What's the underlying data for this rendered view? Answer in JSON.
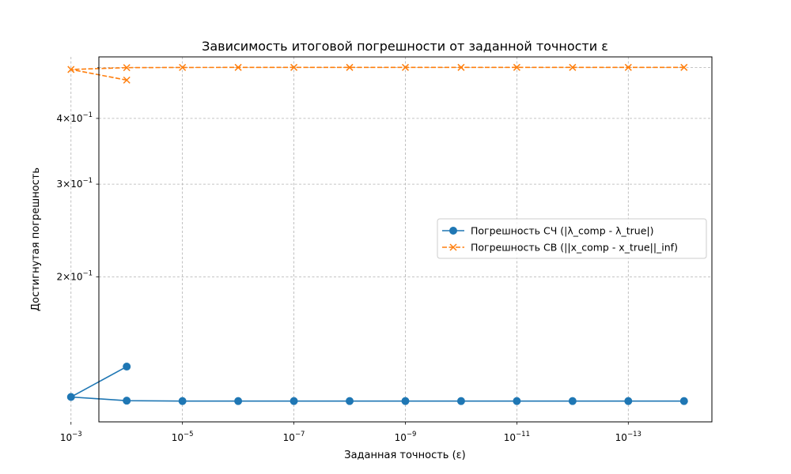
{
  "chart_data": {
    "type": "line",
    "title": "Зависимость итоговой погрешности от заданной точности ε",
    "xlabel": "Заданная точность (ε)",
    "ylabel": "Достигнутая погрешность",
    "x_scale": "log",
    "x_inverted": true,
    "y_scale": "log",
    "xlim": [
      0.000316,
      3.16e-15
    ],
    "ylim": [
      0.106,
      0.5236
    ],
    "x": [
      0.0001,
      0.001,
      0.0001,
      1e-05,
      1e-06,
      1e-07,
      1e-08,
      1e-09,
      1e-10,
      1e-11,
      1e-12,
      1e-13,
      1e-14
    ],
    "x_ticks": [
      {
        "value": 0.001,
        "base": "10",
        "exp": "−3"
      },
      {
        "value": 1e-05,
        "base": "10",
        "exp": "−5"
      },
      {
        "value": 1e-07,
        "base": "10",
        "exp": "−7"
      },
      {
        "value": 1e-09,
        "base": "10",
        "exp": "−9"
      },
      {
        "value": 1e-11,
        "base": "10",
        "exp": "−11"
      },
      {
        "value": 1e-13,
        "base": "10",
        "exp": "−13"
      }
    ],
    "y_ticks": [
      {
        "value": 0.2,
        "base": "2×10",
        "exp": "−1"
      },
      {
        "value": 0.3,
        "base": "3×10",
        "exp": "−1"
      },
      {
        "value": 0.4,
        "base": "4×10",
        "exp": "−1"
      }
    ],
    "y_minor_ticks": [
      0.5
    ],
    "grid": true,
    "legend_position": "center-right",
    "series": [
      {
        "name": "Погрешность СЧ (|λ_comp - λ_true|)",
        "color": "#1f77b4",
        "marker": "circle",
        "linestyle": "solid",
        "values": [
          0.135,
          0.1182,
          0.1163,
          0.1161,
          0.1161,
          0.1161,
          0.1161,
          0.1161,
          0.1161,
          0.1161,
          0.1161,
          0.1161,
          0.1161
        ]
      },
      {
        "name": "Погрешность СВ (||x_comp - x_true||_inf)",
        "color": "#ff7f0e",
        "marker": "x",
        "linestyle": "dashed",
        "values": [
          0.473,
          0.4955,
          0.4995,
          0.4999,
          0.5,
          0.5,
          0.5,
          0.5,
          0.5,
          0.5,
          0.5,
          0.5,
          0.5
        ]
      }
    ]
  }
}
